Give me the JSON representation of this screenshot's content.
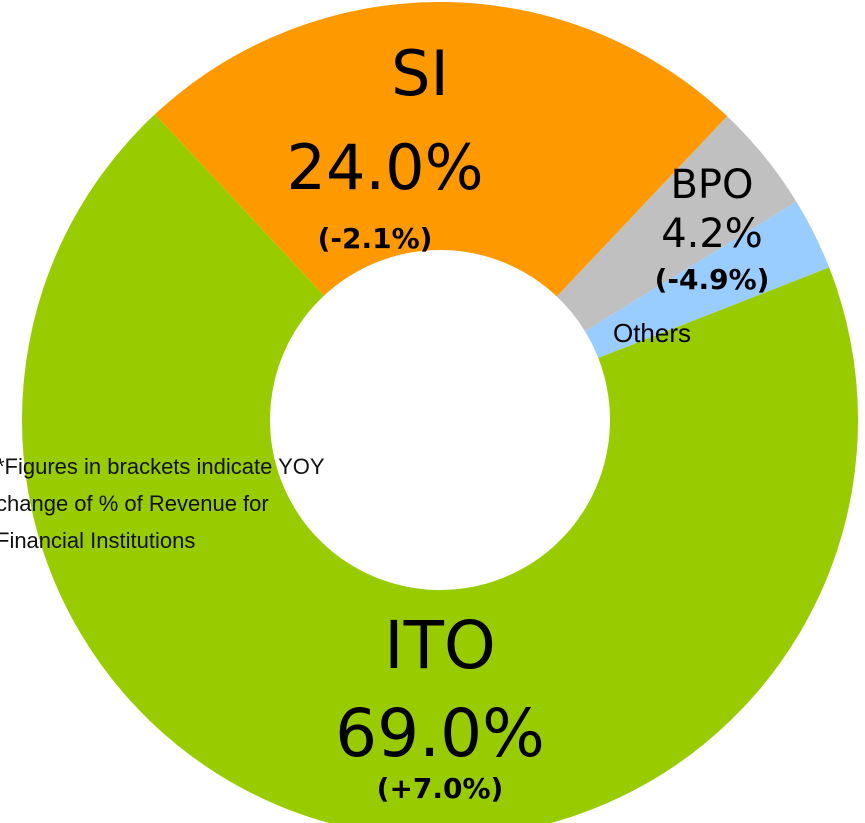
{
  "chart_data": {
    "type": "donut",
    "categories": [
      "SI",
      "BPO",
      "Others",
      "ITO"
    ],
    "values": [
      24.0,
      4.2,
      2.8,
      69.0
    ],
    "value_labels": [
      "24.0%",
      "4.2%",
      null,
      "69.0%"
    ],
    "changes": [
      "(-2.1%)",
      "(-4.9%)",
      null,
      "(+7.0%)"
    ],
    "colors": [
      "#ff9900",
      "#c0c0c0",
      "#99ccff",
      "#99cc00"
    ],
    "change_colors": [
      "#ff0000",
      "#ff0000",
      null,
      "#222222"
    ],
    "note": [
      "*Figures in brackets indicate YOY",
      "change of  % of Revenue for",
      "Financial Institutions"
    ]
  }
}
